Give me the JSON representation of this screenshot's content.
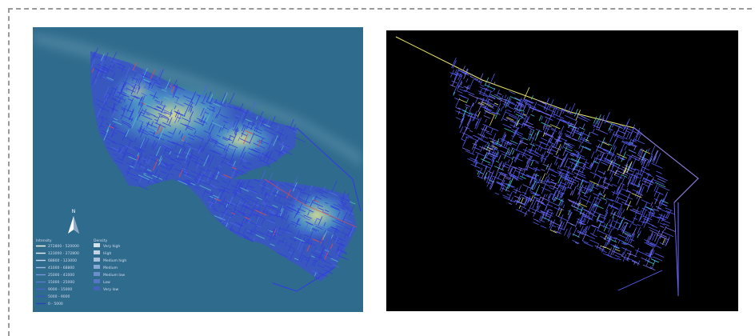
{
  "left_map": {
    "name": "heatmap-over-street-network",
    "colors": {
      "background": "#2f6b8c",
      "streets": "#3440d8",
      "heat_low": "#56b9c9",
      "heat_high": "#f2ef8a",
      "highlight": "#e64a4a"
    },
    "north_arrow": "N",
    "legend": {
      "headers": [
        "Intensity",
        "Density"
      ],
      "col1": [
        "272800 - 520000",
        "123000 - 272800",
        "68800 - 123000",
        "41000 - 68800",
        "25000 - 41000",
        "15000 - 25000",
        "9000 - 15000",
        "5000 - 9000",
        "0 - 5000"
      ],
      "col2": [
        "Very high",
        "High",
        "Medium high",
        "Medium",
        "Medium low",
        "Low",
        "Very low"
      ]
    }
  },
  "right_map": {
    "name": "street-network-dark",
    "colors": {
      "background": "#000000",
      "low": "#5a63ff",
      "mid": "#45d6e0",
      "high": "#f2ef6a",
      "peak": "#ff5a5a"
    }
  }
}
